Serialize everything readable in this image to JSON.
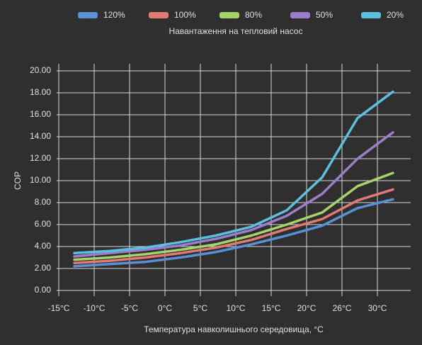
{
  "chart_data": {
    "type": "line",
    "legend_title": "Навантаження на тепловий насос",
    "legend": "top",
    "x_label": "Температура навколишнього середовища, °C",
    "y_label": "COP",
    "grid": true,
    "categories": [
      "-15°C",
      "-10°C",
      "-5°C",
      "0°C",
      "5°C",
      "10°C",
      "15°C",
      "20°C",
      "26°C",
      "30°C"
    ],
    "ylim": [
      0,
      20
    ],
    "yticks": [
      {
        "value": 0,
        "label": "0.00"
      },
      {
        "value": 2,
        "label": "2.00"
      },
      {
        "value": 4,
        "label": "4.00"
      },
      {
        "value": 6,
        "label": "6.00"
      },
      {
        "value": 8,
        "label": "8.00"
      },
      {
        "value": 10,
        "label": "10.00"
      },
      {
        "value": 12,
        "label": "12.00"
      },
      {
        "value": 14,
        "label": "14.00"
      },
      {
        "value": 16,
        "label": "16.00"
      },
      {
        "value": 18,
        "label": "18.00"
      },
      {
        "value": 20,
        "label": "20.00"
      }
    ],
    "series": [
      {
        "name": "120%",
        "color": "#5b8fd6",
        "values": [
          2.2,
          2.4,
          2.6,
          3.0,
          3.5,
          4.2,
          5.0,
          5.9,
          7.5,
          8.3
        ]
      },
      {
        "name": "100%",
        "color": "#e07b74",
        "values": [
          2.5,
          2.7,
          3.0,
          3.4,
          3.9,
          4.6,
          5.6,
          6.5,
          8.2,
          9.2
        ]
      },
      {
        "name": "80%",
        "color": "#a6d36a",
        "values": [
          2.8,
          3.0,
          3.3,
          3.7,
          4.2,
          5.0,
          6.0,
          7.1,
          9.5,
          10.7
        ]
      },
      {
        "name": "50%",
        "color": "#9a7ecb",
        "values": [
          3.1,
          3.4,
          3.7,
          4.1,
          4.7,
          5.5,
          6.8,
          8.8,
          12.0,
          14.4
        ]
      },
      {
        "name": "20%",
        "color": "#5bc0de",
        "values": [
          3.4,
          3.6,
          3.9,
          4.4,
          5.0,
          5.8,
          7.3,
          10.3,
          15.7,
          18.1
        ]
      }
    ]
  }
}
